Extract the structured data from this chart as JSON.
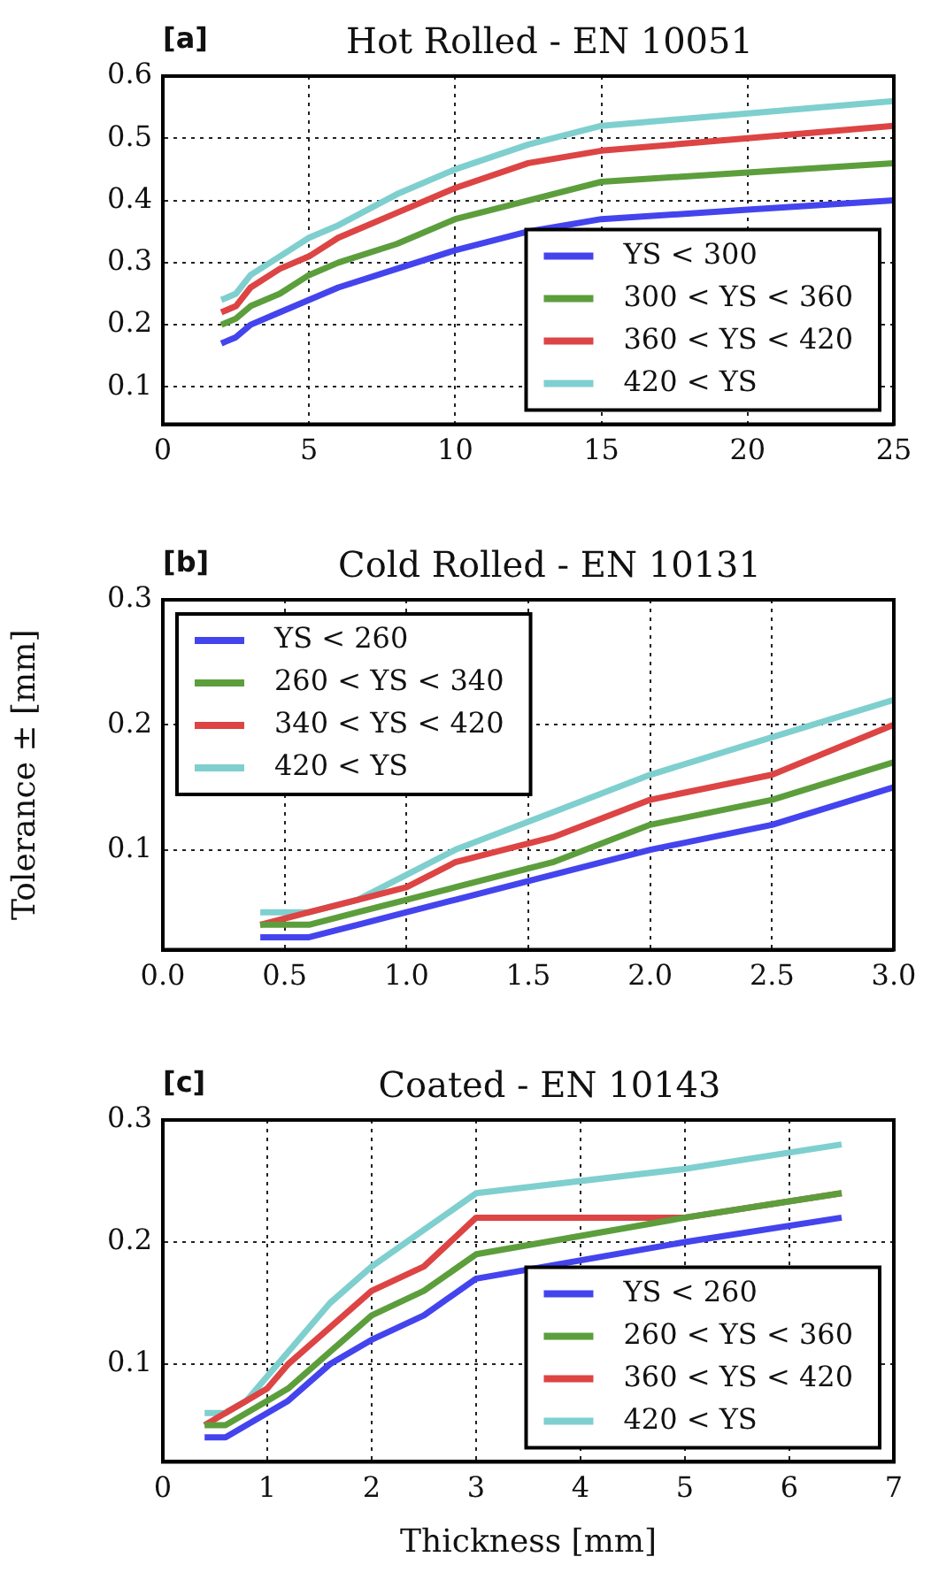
{
  "chart_data": [
    {
      "type": "line",
      "title": "Hot Rolled - EN 10051",
      "annotations": [
        "[a]"
      ],
      "x": [
        2,
        2.5,
        3,
        4,
        5,
        6,
        8,
        10,
        12.5,
        15,
        20,
        25
      ],
      "series": [
        {
          "name": "YS < 300",
          "color": "#4444ee",
          "values": [
            0.17,
            0.18,
            0.2,
            0.22,
            0.24,
            0.26,
            0.29,
            0.32,
            0.35,
            0.37,
            0.385,
            0.4
          ]
        },
        {
          "name": "300 < YS < 360",
          "color": "#5c9e3c",
          "values": [
            0.2,
            0.21,
            0.23,
            0.25,
            0.28,
            0.3,
            0.33,
            0.37,
            0.4,
            0.43,
            0.445,
            0.46
          ]
        },
        {
          "name": "360 < YS < 420",
          "color": "#dd4444",
          "values": [
            0.22,
            0.23,
            0.26,
            0.29,
            0.31,
            0.34,
            0.38,
            0.42,
            0.46,
            0.48,
            0.5,
            0.52
          ]
        },
        {
          "name": "420 < YS",
          "color": "#7fcfcf",
          "values": [
            0.24,
            0.25,
            0.28,
            0.31,
            0.34,
            0.36,
            0.41,
            0.45,
            0.49,
            0.52,
            0.54,
            0.56
          ]
        }
      ],
      "xlim": [
        0,
        25
      ],
      "xticks": [
        0,
        5,
        10,
        15,
        20,
        25
      ],
      "ylim": [
        0.04,
        0.6
      ],
      "yticks": [
        0.1,
        0.2,
        0.3,
        0.4,
        0.5,
        0.6
      ],
      "grid": true,
      "legend": "bottom right"
    },
    {
      "type": "line",
      "title": "Cold Rolled - EN 10131",
      "ylabel": "Tolerance ± [mm]",
      "annotations": [
        "[b]"
      ],
      "x": [
        0.4,
        0.6,
        0.8,
        1.0,
        1.2,
        1.6,
        2.0,
        2.5,
        3.0
      ],
      "series": [
        {
          "name": "YS < 260",
          "color": "#4444ee",
          "values": [
            0.03,
            0.03,
            0.04,
            0.05,
            0.06,
            0.08,
            0.1,
            0.12,
            0.15
          ]
        },
        {
          "name": "260 < YS < 340",
          "color": "#5c9e3c",
          "values": [
            0.04,
            0.04,
            0.05,
            0.06,
            0.07,
            0.09,
            0.12,
            0.14,
            0.17
          ]
        },
        {
          "name": "340 < YS < 420",
          "color": "#dd4444",
          "values": [
            0.04,
            0.05,
            0.06,
            0.07,
            0.09,
            0.11,
            0.14,
            0.16,
            0.2
          ]
        },
        {
          "name": "420 < YS",
          "color": "#7fcfcf",
          "values": [
            0.05,
            0.05,
            0.06,
            0.08,
            0.1,
            0.13,
            0.16,
            0.19,
            0.22
          ]
        }
      ],
      "xlim": [
        0,
        3
      ],
      "xticks": [
        {
          "value": 0,
          "label": "0.0"
        },
        {
          "value": 0.5,
          "label": "0.5"
        },
        {
          "value": 1,
          "label": "1.0"
        },
        {
          "value": 1.5,
          "label": "1.5"
        },
        {
          "value": 2,
          "label": "2.0"
        },
        {
          "value": 2.5,
          "label": "2.5"
        },
        {
          "value": 3,
          "label": "3.0"
        }
      ],
      "ylim": [
        0.02,
        0.3
      ],
      "yticks": [
        0.1,
        0.2,
        0.3
      ],
      "grid": true,
      "legend": "top left"
    },
    {
      "type": "line",
      "title": "Coated - EN 10143",
      "xlabel": "Thickness [mm]",
      "annotations": [
        "[c]"
      ],
      "x": [
        0.4,
        0.6,
        0.8,
        1.0,
        1.2,
        1.6,
        2.0,
        2.5,
        3.0,
        5.0,
        6.5
      ],
      "series": [
        {
          "name": "YS < 260",
          "color": "#4444ee",
          "values": [
            0.04,
            0.04,
            0.05,
            0.06,
            0.07,
            0.1,
            0.12,
            0.14,
            0.17,
            0.2,
            0.22
          ]
        },
        {
          "name": "260 < YS < 360",
          "color": "#5c9e3c",
          "values": [
            0.05,
            0.05,
            0.06,
            0.07,
            0.08,
            0.11,
            0.14,
            0.16,
            0.19,
            0.22,
            0.24
          ]
        },
        {
          "name": "360 < YS < 420",
          "color": "#dd4444",
          "values": [
            0.05,
            0.06,
            0.07,
            0.08,
            0.1,
            0.13,
            0.16,
            0.18,
            0.22,
            0.22,
            0.24
          ]
        },
        {
          "name": "420 < YS",
          "color": "#7fcfcf",
          "values": [
            0.06,
            0.06,
            0.07,
            0.09,
            0.11,
            0.15,
            0.18,
            0.21,
            0.24,
            0.26,
            0.28
          ]
        }
      ],
      "xlim": [
        0,
        7
      ],
      "xticks": [
        0,
        1,
        2,
        3,
        4,
        5,
        6,
        7
      ],
      "ylim": [
        0.02,
        0.3
      ],
      "yticks": [
        0.1,
        0.2,
        0.3
      ],
      "grid": true,
      "legend": "bottom right"
    }
  ]
}
